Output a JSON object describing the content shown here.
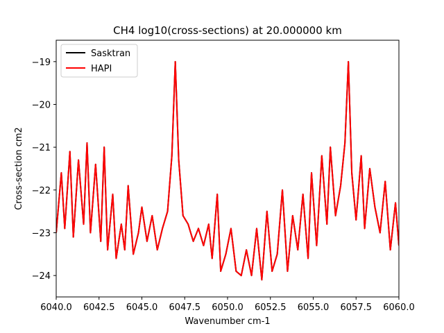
{
  "chart_data": {
    "type": "line",
    "title": "CH4 log10(cross-sections) at 20.000000 km",
    "xlabel": "Wavenumber cm-1",
    "ylabel": "Cross-section cm2",
    "xlim": [
      6040.0,
      6060.0
    ],
    "ylim": [
      -24.5,
      -18.5
    ],
    "x_ticks": [
      "6040.0",
      "6042.5",
      "6045.0",
      "6047.5",
      "6050.0",
      "6052.5",
      "6055.0",
      "6057.5",
      "6060.0"
    ],
    "y_ticks": [
      "-19",
      "-20",
      "-21",
      "-22",
      "-23",
      "-24"
    ],
    "grid": false,
    "legend_position": "top-left",
    "series": [
      {
        "name": "Sasktran",
        "color": "#000000",
        "x": [
          6040.0,
          6040.3,
          6040.5,
          6040.8,
          6041.0,
          6041.3,
          6041.6,
          6041.8,
          6042.0,
          6042.3,
          6042.6,
          6042.8,
          6043.0,
          6043.3,
          6043.5,
          6043.8,
          6044.0,
          6044.2,
          6044.5,
          6044.8,
          6045.0,
          6045.3,
          6045.6,
          6045.9,
          6046.2,
          6046.5,
          6046.75,
          6046.95,
          6047.15,
          6047.4,
          6047.7,
          6048.0,
          6048.3,
          6048.6,
          6048.9,
          6049.1,
          6049.4,
          6049.6,
          6049.9,
          6050.2,
          6050.5,
          6050.8,
          6051.1,
          6051.4,
          6051.7,
          6052.0,
          6052.3,
          6052.6,
          6052.9,
          6053.2,
          6053.5,
          6053.8,
          6054.1,
          6054.4,
          6054.7,
          6054.9,
          6055.2,
          6055.5,
          6055.8,
          6056.0,
          6056.3,
          6056.6,
          6056.85,
          6057.05,
          6057.25,
          6057.5,
          6057.8,
          6058.0,
          6058.3,
          6058.6,
          6058.9,
          6059.2,
          6059.5,
          6059.8,
          6060.0
        ],
        "y": [
          -23.0,
          -21.6,
          -22.9,
          -21.1,
          -23.1,
          -21.3,
          -22.8,
          -20.9,
          -23.0,
          -21.4,
          -23.2,
          -21.0,
          -23.4,
          -22.1,
          -23.6,
          -22.8,
          -23.4,
          -21.9,
          -23.5,
          -23.0,
          -22.4,
          -23.2,
          -22.6,
          -23.4,
          -22.9,
          -22.5,
          -21.2,
          -19.0,
          -21.3,
          -22.6,
          -22.8,
          -23.2,
          -22.9,
          -23.3,
          -22.8,
          -23.6,
          -22.1,
          -23.9,
          -23.5,
          -22.9,
          -23.9,
          -24.0,
          -23.4,
          -24.0,
          -22.9,
          -24.1,
          -22.5,
          -23.9,
          -23.5,
          -22.0,
          -23.9,
          -22.6,
          -23.4,
          -22.1,
          -23.6,
          -21.6,
          -23.3,
          -21.2,
          -22.8,
          -21.0,
          -22.6,
          -21.9,
          -20.9,
          -19.0,
          -21.6,
          -22.7,
          -21.2,
          -22.9,
          -21.5,
          -22.4,
          -23.0,
          -21.8,
          -23.4,
          -22.3,
          -23.3
        ]
      },
      {
        "name": "HAPI",
        "color": "#ff0000",
        "x": [
          6040.0,
          6040.3,
          6040.5,
          6040.8,
          6041.0,
          6041.3,
          6041.6,
          6041.8,
          6042.0,
          6042.3,
          6042.6,
          6042.8,
          6043.0,
          6043.3,
          6043.5,
          6043.8,
          6044.0,
          6044.2,
          6044.5,
          6044.8,
          6045.0,
          6045.3,
          6045.6,
          6045.9,
          6046.2,
          6046.5,
          6046.75,
          6046.95,
          6047.15,
          6047.4,
          6047.7,
          6048.0,
          6048.3,
          6048.6,
          6048.9,
          6049.1,
          6049.4,
          6049.6,
          6049.9,
          6050.2,
          6050.5,
          6050.8,
          6051.1,
          6051.4,
          6051.7,
          6052.0,
          6052.3,
          6052.6,
          6052.9,
          6053.2,
          6053.5,
          6053.8,
          6054.1,
          6054.4,
          6054.7,
          6054.9,
          6055.2,
          6055.5,
          6055.8,
          6056.0,
          6056.3,
          6056.6,
          6056.85,
          6057.05,
          6057.25,
          6057.5,
          6057.8,
          6058.0,
          6058.3,
          6058.6,
          6058.9,
          6059.2,
          6059.5,
          6059.8,
          6060.0
        ],
        "y": [
          -23.0,
          -21.6,
          -22.9,
          -21.1,
          -23.1,
          -21.3,
          -22.8,
          -20.9,
          -23.0,
          -21.4,
          -23.2,
          -21.0,
          -23.4,
          -22.1,
          -23.6,
          -22.8,
          -23.4,
          -21.9,
          -23.5,
          -23.0,
          -22.4,
          -23.2,
          -22.6,
          -23.4,
          -22.9,
          -22.5,
          -21.2,
          -19.0,
          -21.3,
          -22.6,
          -22.8,
          -23.2,
          -22.9,
          -23.3,
          -22.8,
          -23.6,
          -22.1,
          -23.9,
          -23.5,
          -22.9,
          -23.9,
          -24.0,
          -23.4,
          -24.0,
          -22.9,
          -24.1,
          -22.5,
          -23.9,
          -23.5,
          -22.0,
          -23.9,
          -22.6,
          -23.4,
          -22.1,
          -23.6,
          -21.6,
          -23.3,
          -21.2,
          -22.8,
          -21.0,
          -22.6,
          -21.9,
          -20.9,
          -19.0,
          -21.6,
          -22.7,
          -21.2,
          -22.9,
          -21.5,
          -22.4,
          -23.0,
          -21.8,
          -23.4,
          -22.3,
          -23.3
        ]
      }
    ]
  }
}
